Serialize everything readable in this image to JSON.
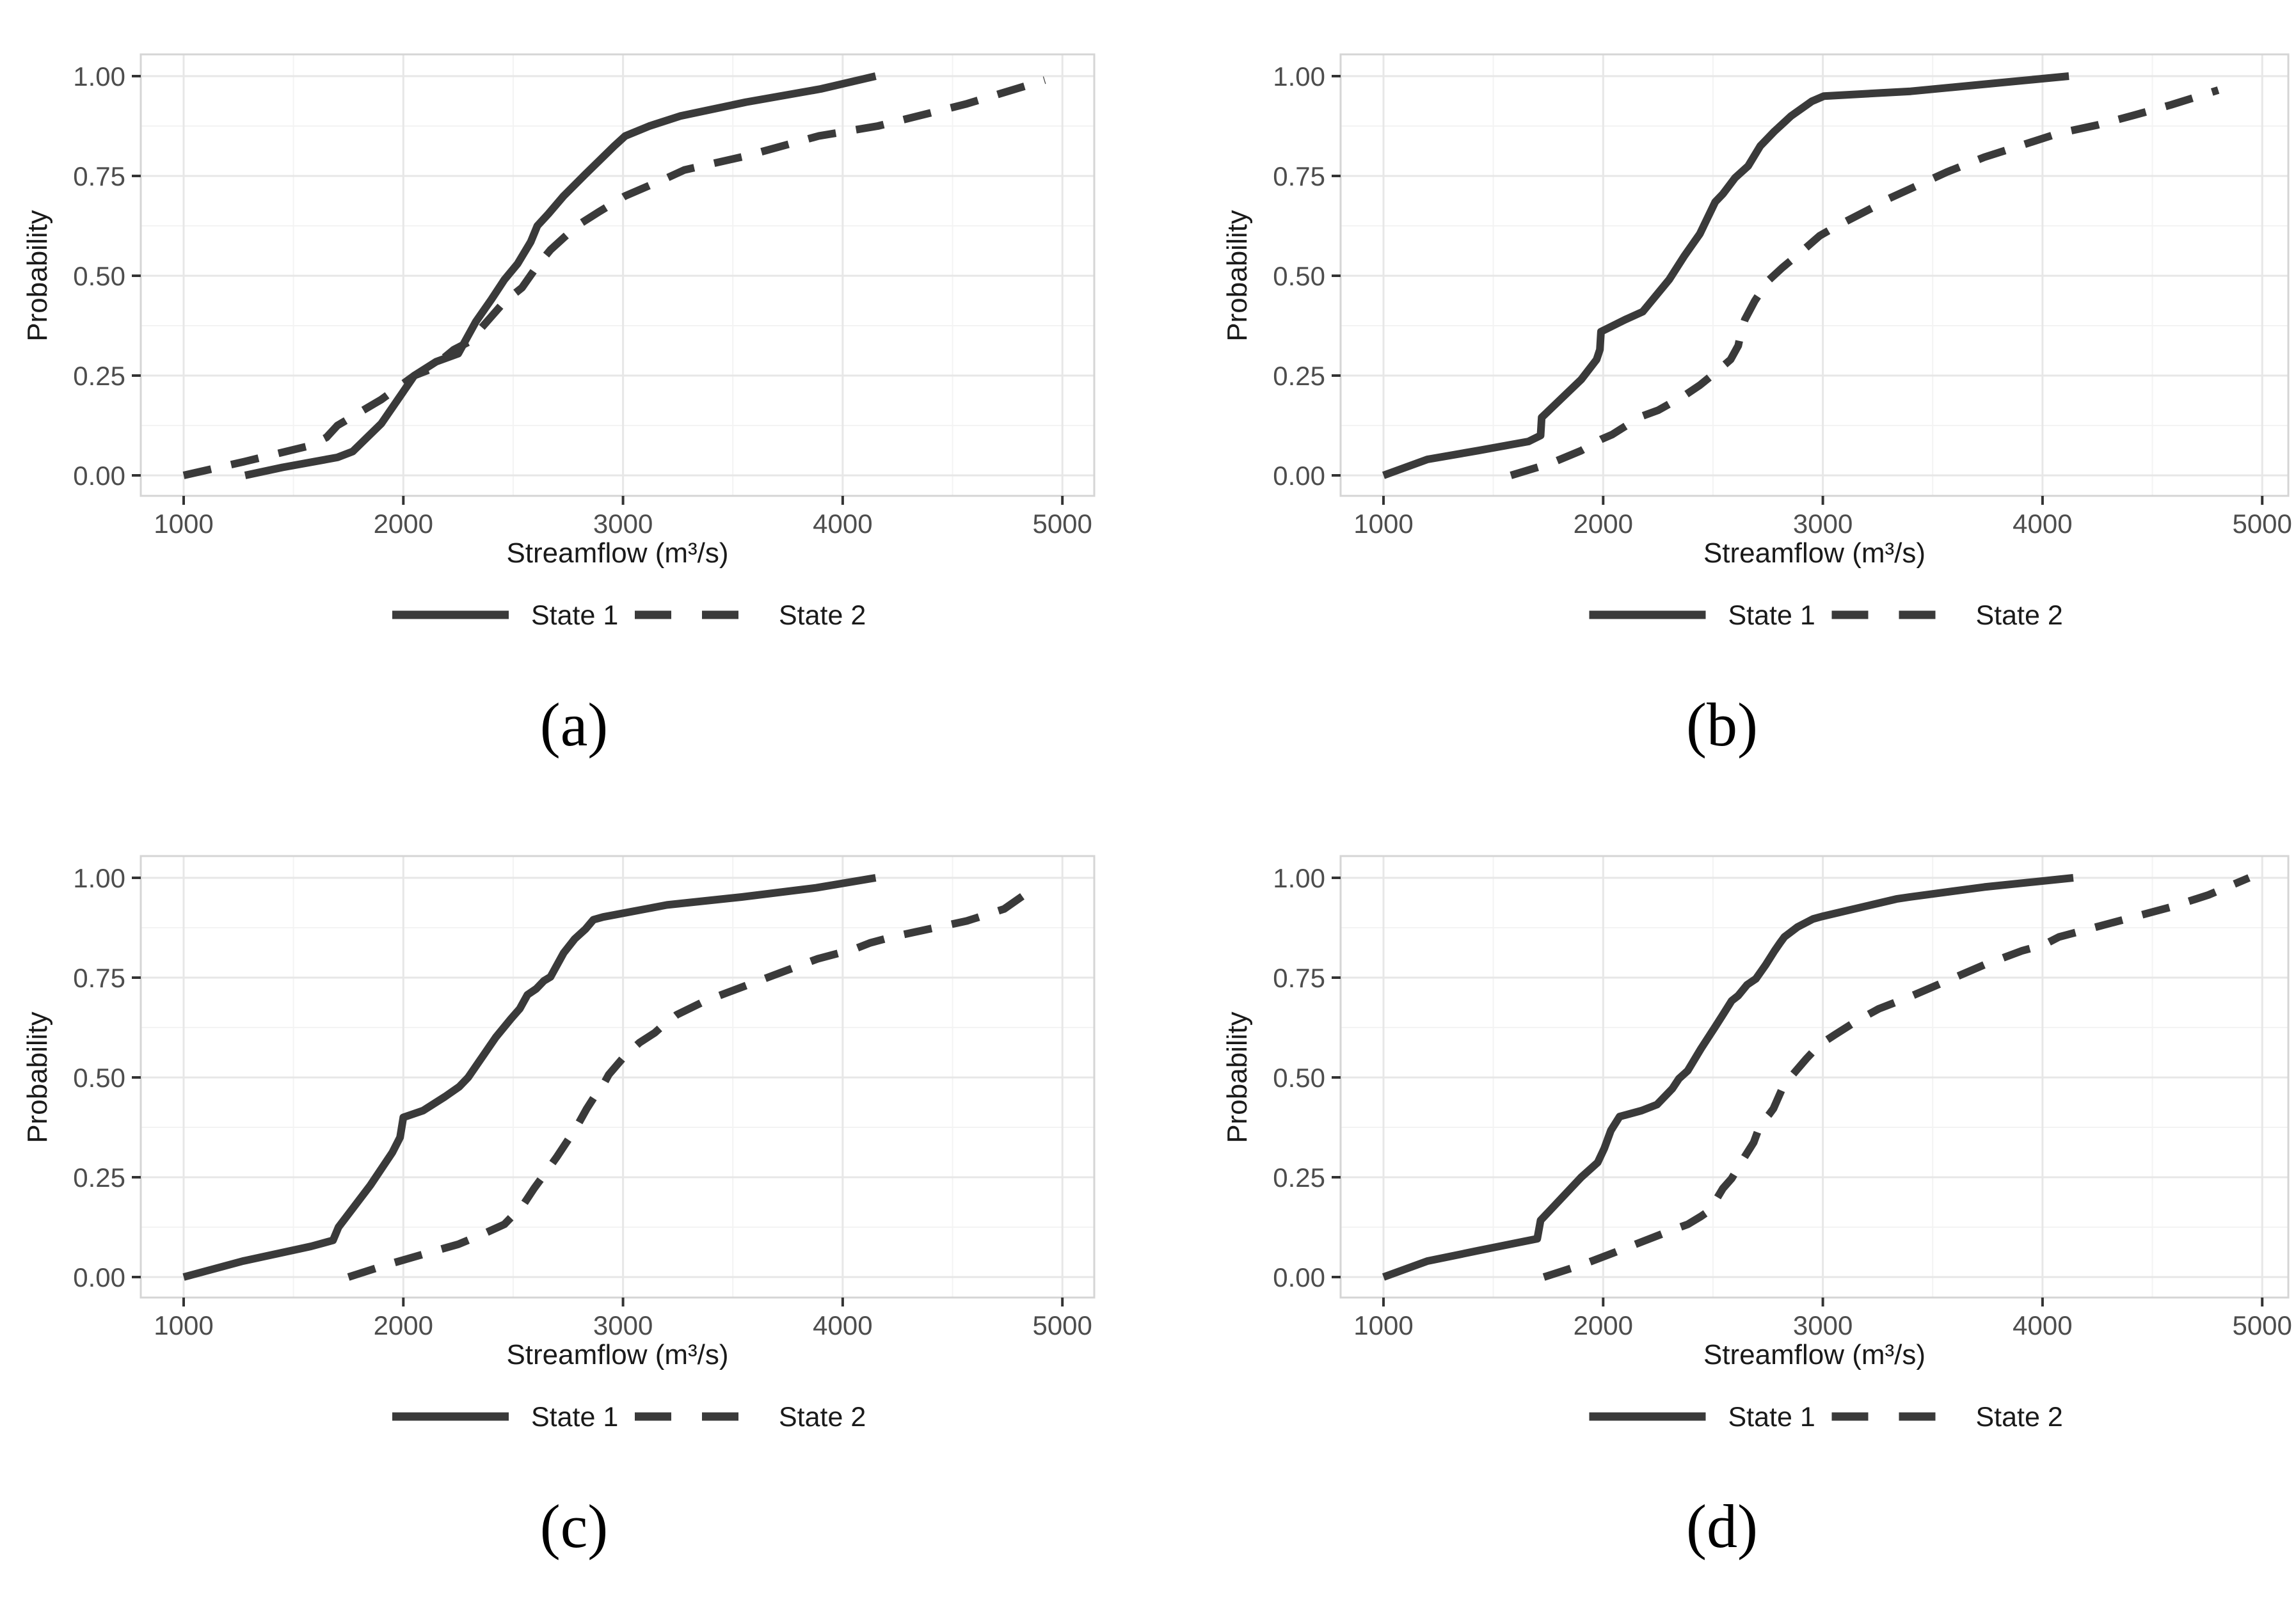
{
  "figure": {
    "background": "#ffffff",
    "description": "Four-panel figure of empirical cumulative distribution functions of streamflow for two states"
  },
  "styles": {
    "line_color": "#3a3a3a",
    "grid_major_color": "#e7e7e7",
    "grid_minor_color": "#f3f3f3",
    "panel_border_color": "#d5d5d5",
    "panel_background": "#ffffff",
    "tick_color": "#333333",
    "tick_label_color": "#4d4d4d",
    "axis_title_color": "#1a1a1a",
    "legend_text_color": "#1a1a1a",
    "caption_color": "#000000"
  },
  "axes": {
    "x_title": "Streamflow (m³/s)",
    "y_title": "Probability",
    "x_range": [
      1000,
      5000
    ],
    "y_range": [
      0.0,
      1.0
    ],
    "x_major_ticks": [
      1000,
      2000,
      3000,
      4000,
      5000
    ],
    "x_minor_ticks": [
      1500,
      2500,
      3500,
      4500
    ],
    "y_major_ticks": [
      {
        "value": 0.0,
        "label": "0.00"
      },
      {
        "value": 0.25,
        "label": "0.25"
      },
      {
        "value": 0.5,
        "label": "0.50"
      },
      {
        "value": 0.75,
        "label": "0.75"
      },
      {
        "value": 1.0,
        "label": "1.00"
      }
    ],
    "y_minor_ticks": [
      0.125,
      0.375,
      0.625,
      0.875
    ],
    "grid": "on"
  },
  "legend": {
    "position": "bottom-center",
    "items": [
      {
        "label": "State 1",
        "style": "solid"
      },
      {
        "label": "State 2",
        "style": "dashed"
      }
    ]
  },
  "chart_data": [
    {
      "type": "line",
      "caption": "(a)",
      "column": "left",
      "xlabel": "Streamflow (m³/s)",
      "ylabel": "Probability",
      "xlim": [
        1000,
        5000
      ],
      "ylim": [
        0.0,
        1.0
      ],
      "series": [
        {
          "name": "State 1",
          "style": "solid",
          "points": [
            [
              1280,
              0
            ],
            [
              1450,
              0.02
            ],
            [
              1700,
              0.045
            ],
            [
              1770,
              0.06
            ],
            [
              1900,
              0.13
            ],
            [
              2050,
              0.25
            ],
            [
              2150,
              0.285
            ],
            [
              2250,
              0.305
            ],
            [
              2330,
              0.385
            ],
            [
              2400,
              0.44
            ],
            [
              2460,
              0.49
            ],
            [
              2520,
              0.53
            ],
            [
              2580,
              0.585
            ],
            [
              2610,
              0.625
            ],
            [
              2660,
              0.655
            ],
            [
              2730,
              0.7
            ],
            [
              2830,
              0.755
            ],
            [
              2960,
              0.825
            ],
            [
              3010,
              0.85
            ],
            [
              3120,
              0.875
            ],
            [
              3260,
              0.9
            ],
            [
              3560,
              0.935
            ],
            [
              3900,
              0.968
            ],
            [
              4150,
              1.0
            ]
          ]
        },
        {
          "name": "State 2",
          "style": "dashed",
          "points": [
            [
              1000,
              0
            ],
            [
              1280,
              0.035
            ],
            [
              1580,
              0.075
            ],
            [
              1650,
              0.095
            ],
            [
              1700,
              0.125
            ],
            [
              1900,
              0.19
            ],
            [
              2050,
              0.25
            ],
            [
              2120,
              0.265
            ],
            [
              2230,
              0.315
            ],
            [
              2300,
              0.335
            ],
            [
              2380,
              0.385
            ],
            [
              2460,
              0.435
            ],
            [
              2540,
              0.47
            ],
            [
              2610,
              0.525
            ],
            [
              2670,
              0.565
            ],
            [
              2740,
              0.6
            ],
            [
              2790,
              0.625
            ],
            [
              2890,
              0.66
            ],
            [
              3010,
              0.7
            ],
            [
              3200,
              0.745
            ],
            [
              3280,
              0.765
            ],
            [
              3560,
              0.8
            ],
            [
              3890,
              0.85
            ],
            [
              4160,
              0.875
            ],
            [
              4560,
              0.93
            ],
            [
              4920,
              0.99
            ]
          ]
        }
      ]
    },
    {
      "type": "line",
      "caption": "(b)",
      "column": "right",
      "xlabel": "Streamflow (m³/s)",
      "ylabel": "Probability",
      "xlim": [
        1000,
        5000
      ],
      "ylim": [
        0.0,
        1.0
      ],
      "series": [
        {
          "name": "State 1",
          "style": "solid",
          "points": [
            [
              1000,
              0
            ],
            [
              1200,
              0.04
            ],
            [
              1430,
              0.062
            ],
            [
              1660,
              0.085
            ],
            [
              1715,
              0.1
            ],
            [
              1720,
              0.145
            ],
            [
              1900,
              0.24
            ],
            [
              1970,
              0.29
            ],
            [
              1985,
              0.315
            ],
            [
              1990,
              0.36
            ],
            [
              2100,
              0.39
            ],
            [
              2180,
              0.41
            ],
            [
              2300,
              0.49
            ],
            [
              2370,
              0.55
            ],
            [
              2440,
              0.605
            ],
            [
              2510,
              0.685
            ],
            [
              2545,
              0.705
            ],
            [
              2600,
              0.745
            ],
            [
              2660,
              0.775
            ],
            [
              2715,
              0.825
            ],
            [
              2780,
              0.862
            ],
            [
              2855,
              0.9
            ],
            [
              2950,
              0.937
            ],
            [
              3005,
              0.95
            ],
            [
              3400,
              0.962
            ],
            [
              3740,
              0.98
            ],
            [
              4120,
              1.0
            ]
          ]
        },
        {
          "name": "State 2",
          "style": "dashed",
          "points": [
            [
              1580,
              0
            ],
            [
              1760,
              0.03
            ],
            [
              1900,
              0.062
            ],
            [
              1990,
              0.09
            ],
            [
              2040,
              0.102
            ],
            [
              2170,
              0.147
            ],
            [
              2250,
              0.163
            ],
            [
              2370,
              0.2
            ],
            [
              2440,
              0.226
            ],
            [
              2510,
              0.257
            ],
            [
              2580,
              0.29
            ],
            [
              2615,
              0.325
            ],
            [
              2630,
              0.365
            ],
            [
              2645,
              0.39
            ],
            [
              2690,
              0.437
            ],
            [
              2750,
              0.487
            ],
            [
              2815,
              0.52
            ],
            [
              2885,
              0.552
            ],
            [
              2985,
              0.6
            ],
            [
              3055,
              0.622
            ],
            [
              3225,
              0.67
            ],
            [
              3295,
              0.692
            ],
            [
              3395,
              0.717
            ],
            [
              3565,
              0.76
            ],
            [
              3735,
              0.797
            ],
            [
              3905,
              0.827
            ],
            [
              4075,
              0.857
            ],
            [
              4245,
              0.877
            ],
            [
              4415,
              0.902
            ],
            [
              4585,
              0.928
            ],
            [
              4800,
              0.965
            ]
          ]
        }
      ]
    },
    {
      "type": "line",
      "caption": "(c)",
      "column": "left",
      "xlabel": "Streamflow (m³/s)",
      "ylabel": "Probability",
      "xlim": [
        1000,
        5000
      ],
      "ylim": [
        0.0,
        1.0
      ],
      "series": [
        {
          "name": "State 1",
          "style": "solid",
          "points": [
            [
              1000,
              0
            ],
            [
              1270,
              0.04
            ],
            [
              1580,
              0.077
            ],
            [
              1680,
              0.092
            ],
            [
              1705,
              0.125
            ],
            [
              1850,
              0.23
            ],
            [
              1950,
              0.312
            ],
            [
              1985,
              0.35
            ],
            [
              2000,
              0.4
            ],
            [
              2090,
              0.417
            ],
            [
              2190,
              0.452
            ],
            [
              2255,
              0.477
            ],
            [
              2295,
              0.5
            ],
            [
              2360,
              0.552
            ],
            [
              2420,
              0.6
            ],
            [
              2490,
              0.647
            ],
            [
              2530,
              0.672
            ],
            [
              2565,
              0.707
            ],
            [
              2605,
              0.722
            ],
            [
              2640,
              0.742
            ],
            [
              2670,
              0.752
            ],
            [
              2730,
              0.812
            ],
            [
              2780,
              0.847
            ],
            [
              2830,
              0.872
            ],
            [
              2865,
              0.895
            ],
            [
              2910,
              0.902
            ],
            [
              3200,
              0.932
            ],
            [
              3540,
              0.952
            ],
            [
              3880,
              0.975
            ],
            [
              4150,
              1.0
            ]
          ]
        },
        {
          "name": "State 2",
          "style": "dashed",
          "points": [
            [
              1750,
              0
            ],
            [
              1920,
              0.03
            ],
            [
              2090,
              0.057
            ],
            [
              2250,
              0.082
            ],
            [
              2360,
              0.107
            ],
            [
              2460,
              0.132
            ],
            [
              2495,
              0.152
            ],
            [
              2535,
              0.172
            ],
            [
              2595,
              0.222
            ],
            [
              2635,
              0.252
            ],
            [
              2700,
              0.302
            ],
            [
              2760,
              0.352
            ],
            [
              2800,
              0.387
            ],
            [
              2835,
              0.422
            ],
            [
              2870,
              0.452
            ],
            [
              2905,
              0.477
            ],
            [
              2935,
              0.507
            ],
            [
              3005,
              0.552
            ],
            [
              3075,
              0.587
            ],
            [
              3145,
              0.612
            ],
            [
              3175,
              0.627
            ],
            [
              3245,
              0.657
            ],
            [
              3375,
              0.692
            ],
            [
              3545,
              0.727
            ],
            [
              3715,
              0.762
            ],
            [
              3885,
              0.797
            ],
            [
              4055,
              0.822
            ],
            [
              4125,
              0.837
            ],
            [
              4225,
              0.852
            ],
            [
              4395,
              0.872
            ],
            [
              4565,
              0.892
            ],
            [
              4735,
              0.922
            ],
            [
              4860,
              0.97
            ]
          ]
        }
      ]
    },
    {
      "type": "line",
      "caption": "(d)",
      "column": "right",
      "xlabel": "Streamflow (m³/s)",
      "ylabel": "Probability",
      "xlim": [
        1000,
        5000
      ],
      "ylim": [
        0.0,
        1.0
      ],
      "series": [
        {
          "name": "State 1",
          "style": "solid",
          "points": [
            [
              1000,
              0
            ],
            [
              1200,
              0.04
            ],
            [
              1430,
              0.066
            ],
            [
              1700,
              0.096
            ],
            [
              1715,
              0.142
            ],
            [
              1900,
              0.25
            ],
            [
              1975,
              0.287
            ],
            [
              2005,
              0.322
            ],
            [
              2035,
              0.367
            ],
            [
              2075,
              0.402
            ],
            [
              2175,
              0.417
            ],
            [
              2245,
              0.432
            ],
            [
              2315,
              0.472
            ],
            [
              2345,
              0.497
            ],
            [
              2385,
              0.517
            ],
            [
              2445,
              0.572
            ],
            [
              2510,
              0.627
            ],
            [
              2545,
              0.657
            ],
            [
              2585,
              0.692
            ],
            [
              2615,
              0.705
            ],
            [
              2655,
              0.732
            ],
            [
              2695,
              0.747
            ],
            [
              2740,
              0.782
            ],
            [
              2780,
              0.817
            ],
            [
              2805,
              0.837
            ],
            [
              2825,
              0.852
            ],
            [
              2885,
              0.877
            ],
            [
              2955,
              0.897
            ],
            [
              2995,
              0.903
            ],
            [
              3220,
              0.932
            ],
            [
              3335,
              0.947
            ],
            [
              3395,
              0.952
            ],
            [
              3735,
              0.977
            ],
            [
              4140,
              1.0
            ]
          ]
        },
        {
          "name": "State 2",
          "style": "dashed",
          "points": [
            [
              1730,
              0
            ],
            [
              1900,
              0.03
            ],
            [
              2030,
              0.057
            ],
            [
              2170,
              0.087
            ],
            [
              2310,
              0.117
            ],
            [
              2385,
              0.132
            ],
            [
              2445,
              0.152
            ],
            [
              2485,
              0.167
            ],
            [
              2545,
              0.222
            ],
            [
              2585,
              0.247
            ],
            [
              2645,
              0.302
            ],
            [
              2685,
              0.337
            ],
            [
              2715,
              0.382
            ],
            [
              2755,
              0.407
            ],
            [
              2775,
              0.422
            ],
            [
              2815,
              0.472
            ],
            [
              2855,
              0.502
            ],
            [
              2925,
              0.547
            ],
            [
              2985,
              0.582
            ],
            [
              3055,
              0.607
            ],
            [
              3155,
              0.642
            ],
            [
              3255,
              0.672
            ],
            [
              3395,
              0.702
            ],
            [
              3565,
              0.742
            ],
            [
              3735,
              0.782
            ],
            [
              3905,
              0.817
            ],
            [
              4005,
              0.832
            ],
            [
              4075,
              0.852
            ],
            [
              4245,
              0.877
            ],
            [
              4415,
              0.902
            ],
            [
              4585,
              0.927
            ],
            [
              4755,
              0.957
            ],
            [
              4940,
              1.0
            ]
          ]
        }
      ]
    }
  ]
}
